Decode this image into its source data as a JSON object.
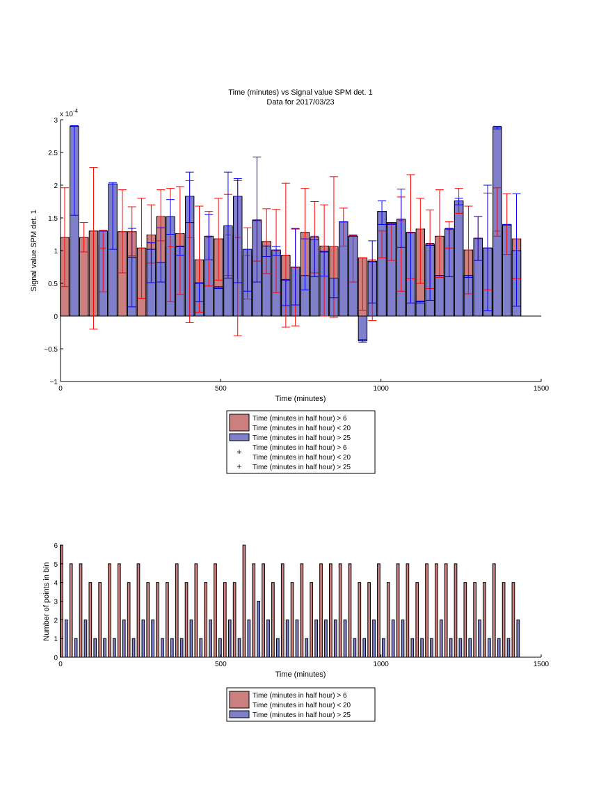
{
  "chart_data": [
    {
      "type": "bar",
      "title": "Time (minutes) vs Signal value SPM det. 1",
      "subtitle": "Data for 2017/03/23",
      "xlabel": "Time (minutes)",
      "ylabel": "Signal value SPM det. 1",
      "y_exponent_label": "x 10",
      "y_exponent": "-4",
      "xlim": [
        0,
        1500
      ],
      "ylim": [
        -1,
        3
      ],
      "xticks": [
        "0",
        "500",
        "1000",
        "1500"
      ],
      "yticks": [
        "−1",
        "−0.5",
        "0",
        "0.5",
        "1",
        "1.5",
        "2",
        "2.5",
        "3"
      ],
      "grid": false,
      "legend_position": "below",
      "legend": [
        {
          "lines": [
            "Time (minutes in half hour) > 6",
            "Time (minutes in half hour) < 20"
          ],
          "marker": "patch",
          "color": "#cc7f7f"
        },
        {
          "lines": [
            "Time (minutes in half hour) > 25"
          ],
          "marker": "patch",
          "color": "#7f7fcc"
        },
        {
          "lines": [
            "Time (minutes in half hour) > 6",
            "Time (minutes in half hour) < 20"
          ],
          "marker": "plus",
          "color": "#ff0000"
        },
        {
          "lines": [
            "Time (minutes in half hour) > 25"
          ],
          "marker": "plus",
          "color": "#0000ff"
        }
      ],
      "series": [
        {
          "name": "Time (minutes in half hour) > 6 / Time (minutes in half hour) < 20",
          "color": "#cc7f7f",
          "errorbar_color": "#ff0000",
          "x": [
            13,
            73,
            103,
            133,
            193,
            223,
            253,
            283,
            313,
            343,
            373,
            403,
            433,
            463,
            493,
            523,
            553,
            583,
            613,
            643,
            673,
            703,
            733,
            763,
            793,
            823,
            853,
            883,
            913,
            943,
            973,
            1003,
            1033,
            1063,
            1093,
            1123,
            1153,
            1183,
            1213,
            1243,
            1273,
            1303,
            1333,
            1363,
            1393,
            1423
          ],
          "values": [
            1.2,
            1.2,
            1.3,
            1.04,
            1.29,
            1.29,
            1.04,
            1.24,
            1.52,
            1.06,
            1.26,
            1.2,
            0.86,
            1.2,
            1.18,
            1.24,
            1.2,
            0.92,
            1.47,
            1.14,
            1.0,
            0.93,
            0.74,
            1.28,
            1.2,
            1.07,
            1.06,
            1.44,
            1.22,
            0.89,
            0.84,
            1.6,
            1.43,
            1.46,
            1.27,
            1.33,
            1.1,
            1.22,
            1.32,
            1.76,
            1.01,
            1.18,
            1.04,
            1.3,
            1.4,
            1.18
          ],
          "err_low": [
            0.45,
            0.98,
            -0.2,
            0.37,
            0.66,
            0.92,
            0.27,
            0.81,
            1.15,
            0.22,
            0.33,
            -0.1,
            0.06,
            0.46,
            0.55,
            0.62,
            -0.3,
            0.26,
            0.84,
            0.65,
            0.36,
            -0.17,
            -0.15,
            0.62,
            0.66,
            0.0,
            -0.02,
            1.07,
            0.52,
            0.09,
            -0.07,
            0.89,
            0.85,
            0.38,
            0.57,
            0.5,
            0.42,
            0.59,
            1.04,
            1.57,
            0.34,
            0.85,
            0.4,
            1.22,
            0.94,
            0.57
          ],
          "err_high": [
            1.96,
            1.43,
            2.27,
            1.31,
            1.93,
            1.67,
            1.8,
            1.7,
            1.93,
            1.95,
            1.98,
            2.07,
            1.68,
            1.6,
            1.8,
            1.86,
            2.07,
            1.35,
            1.47,
            1.64,
            1.63,
            2.03,
            1.34,
            1.95,
            1.75,
            1.7,
            2.13,
            1.65,
            1.23,
            0.89,
            0.86,
            1.3,
            1.4,
            1.82,
            2.16,
            1.8,
            1.62,
            1.93,
            1.44,
            1.95,
            1.68,
            1.52,
            1.88,
            1.96,
            1.87,
            1.18
          ]
        },
        {
          "name": "Time (minutes in half hour) > 25",
          "color": "#7f7fcc",
          "errorbar_color": "#0000ff",
          "x": [
            43,
            133,
            163,
            223,
            283,
            313,
            343,
            373,
            403,
            433,
            463,
            493,
            523,
            553,
            583,
            613,
            643,
            673,
            703,
            733,
            763,
            793,
            823,
            853,
            883,
            913,
            943,
            973,
            1003,
            1033,
            1063,
            1093,
            1123,
            1153,
            1183,
            1213,
            1243,
            1273,
            1303,
            1333,
            1363,
            1393,
            1423
          ],
          "values": [
            2.9,
            1.3,
            2.02,
            0.9,
            1.02,
            0.82,
            1.52,
            1.06,
            1.83,
            0.5,
            1.22,
            0.43,
            1.38,
            1.83,
            1.02,
            1.46,
            1.07,
            1.01,
            0.55,
            0.75,
            0.62,
            1.17,
            0.98,
            0.58,
            1.44,
            1.22,
            -0.38,
            0.83,
            1.6,
            1.41,
            1.48,
            1.28,
            0.22,
            1.08,
            0.62,
            1.33,
            1.76,
            0.62,
            1.19,
            1.04,
            2.89,
            1.39,
            1.0
          ],
          "err_low": [
            1.54,
            1.3,
            1.02,
            0.14,
            0.51,
            0.52,
            1.25,
            0.93,
            1.43,
            0.22,
            0.86,
            0.42,
            0.58,
            0.51,
            0.38,
            0.52,
            0.91,
            0.93,
            0.16,
            0.17,
            0.4,
            0.6,
            0.61,
            0.28,
            1.44,
            1.22,
            -0.4,
            0.2,
            1.4,
            1.4,
            1.05,
            0.2,
            0.2,
            0.24,
            0.62,
            0.6,
            1.7,
            0.59,
            0.85,
            0.08,
            2.86,
            1.39,
            0.15
          ],
          "err_high": [
            2.91,
            1.3,
            2.04,
            1.34,
            1.12,
            1.35,
            1.78,
            1.07,
            2.2,
            0.51,
            1.55,
            0.45,
            2.2,
            2.1,
            1.02,
            2.43,
            1.07,
            1.06,
            0.56,
            1.33,
            1.18,
            1.22,
            0.99,
            0.58,
            1.44,
            1.24,
            -0.36,
            1.15,
            1.76,
            1.43,
            1.94,
            1.28,
            0.23,
            1.11,
            0.62,
            1.34,
            1.8,
            0.62,
            1.52,
            2.0,
            2.9,
            1.4,
            1.87
          ]
        }
      ]
    },
    {
      "type": "bar",
      "xlabel": "Time (minutes)",
      "ylabel": "Number of points in bin",
      "xlim": [
        0,
        1500
      ],
      "ylim": [
        0,
        6
      ],
      "xticks": [
        "0",
        "500",
        "1000",
        "1500"
      ],
      "yticks": [
        "0",
        "1",
        "2",
        "3",
        "4",
        "5",
        "6"
      ],
      "grid": false,
      "legend_position": "below",
      "legend": [
        {
          "lines": [
            "Time (minutes in half hour) > 6",
            "Time (minutes in half hour) < 20"
          ],
          "marker": "patch",
          "color": "#cc7f7f"
        },
        {
          "lines": [
            "Time (minutes in half hour) > 25"
          ],
          "marker": "patch",
          "color": "#7f7fcc"
        }
      ],
      "series": [
        {
          "name": "Time (minutes in half hour) > 6 / Time (minutes in half hour) < 20",
          "color": "#cc7f7f",
          "x": [
            3,
            33,
            63,
            93,
            123,
            153,
            183,
            213,
            243,
            273,
            303,
            333,
            363,
            393,
            423,
            453,
            483,
            513,
            543,
            573,
            603,
            633,
            663,
            693,
            723,
            753,
            783,
            813,
            843,
            873,
            903,
            933,
            963,
            993,
            1023,
            1053,
            1083,
            1113,
            1143,
            1173,
            1203,
            1233,
            1263,
            1293,
            1323,
            1353,
            1383,
            1413
          ],
          "values": [
            6,
            5,
            5,
            4,
            4,
            5,
            5,
            4,
            5,
            4,
            4,
            4,
            5,
            4,
            5,
            4,
            5,
            4,
            4,
            6,
            5,
            5,
            4,
            5,
            4,
            5,
            4,
            5,
            5,
            5,
            5,
            4,
            4,
            5,
            4,
            5,
            5,
            4,
            5,
            5,
            5,
            5,
            4,
            4,
            4,
            5,
            4,
            4
          ]
        },
        {
          "name": "Time (minutes in half hour) > 25",
          "color": "#7f7fcc",
          "x": [
            18,
            48,
            78,
            108,
            138,
            168,
            198,
            228,
            258,
            288,
            318,
            348,
            378,
            408,
            438,
            468,
            498,
            528,
            558,
            588,
            618,
            648,
            678,
            708,
            738,
            768,
            798,
            828,
            858,
            888,
            918,
            948,
            978,
            1008,
            1038,
            1068,
            1098,
            1128,
            1158,
            1188,
            1218,
            1248,
            1278,
            1308,
            1338,
            1368,
            1398,
            1428
          ],
          "values": [
            2,
            1,
            2,
            1,
            1,
            1,
            2,
            1,
            2,
            2,
            1,
            1,
            1,
            2,
            1,
            2,
            1,
            2,
            1,
            2,
            3,
            2,
            1,
            2,
            2,
            1,
            2,
            2,
            2,
            2,
            1,
            1,
            2,
            1,
            2,
            2,
            1,
            1,
            1,
            2,
            1,
            1,
            1,
            2,
            1,
            1,
            1,
            2
          ]
        }
      ]
    }
  ]
}
